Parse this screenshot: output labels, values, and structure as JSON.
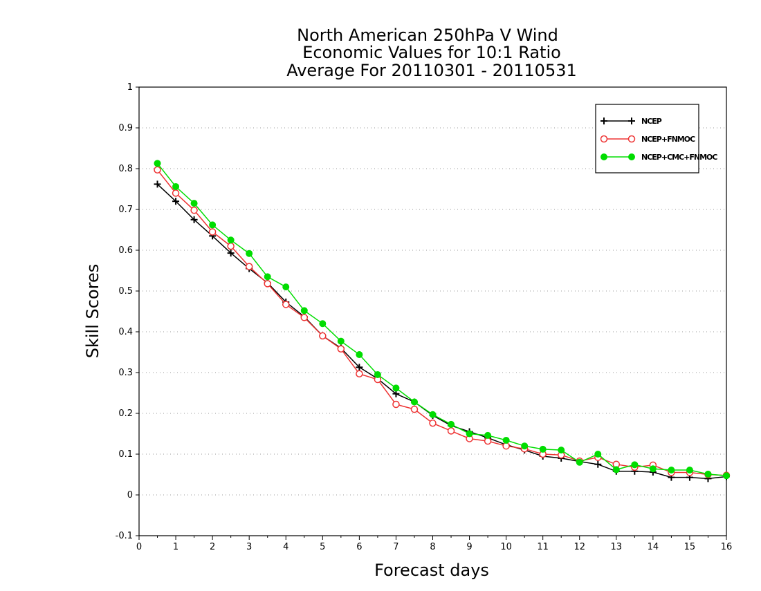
{
  "chart_data": {
    "type": "line",
    "title": [
      "North American 250hPa V Wind",
      "Economic Values for 10:1 Ratio",
      "Average For 20110301 - 20110531"
    ],
    "xlabel": "Forecast days",
    "ylabel": "Skill Scores",
    "xlim": [
      0,
      16
    ],
    "ylim": [
      -0.1,
      1
    ],
    "xticks": [
      0,
      1,
      2,
      3,
      4,
      5,
      6,
      7,
      8,
      9,
      10,
      11,
      12,
      13,
      14,
      15,
      16
    ],
    "xtick_labels": [
      "0",
      "1",
      "2",
      "3",
      "4",
      "5",
      "6",
      "7",
      "8",
      "9",
      "10",
      "11",
      "12",
      "13",
      "14",
      "15",
      "16"
    ],
    "yticks": [
      -0.1,
      0,
      0.1,
      0.2,
      0.3,
      0.4,
      0.5,
      0.6,
      0.7,
      0.8,
      0.9,
      1
    ],
    "ytick_labels": [
      "-0.1",
      "0",
      "0.1",
      "0.2",
      "0.3",
      "0.4",
      "0.5",
      "0.6",
      "0.7",
      "0.8",
      "0.9",
      "1"
    ],
    "grid": "horizontal dotted",
    "legend_position": "top-right",
    "x": [
      0.5,
      1,
      1.5,
      2,
      2.5,
      3,
      3.5,
      4,
      4.5,
      5,
      5.5,
      6,
      6.5,
      7,
      7.5,
      8,
      8.5,
      9,
      9.5,
      10,
      10.5,
      11,
      11.5,
      12,
      12.5,
      13,
      13.5,
      14,
      14.5,
      15,
      15.5,
      16
    ],
    "series": [
      {
        "name": "NCEP",
        "color": "#000000",
        "marker": "plus",
        "values": [
          0.762,
          0.72,
          0.675,
          0.635,
          0.593,
          0.555,
          0.52,
          0.473,
          0.437,
          0.39,
          0.36,
          0.313,
          0.285,
          0.248,
          0.228,
          0.195,
          0.17,
          0.155,
          0.14,
          0.123,
          0.11,
          0.095,
          0.09,
          0.082,
          0.075,
          0.058,
          0.058,
          0.056,
          0.043,
          0.043,
          0.04,
          0.045
        ]
      },
      {
        "name": "NCEP+FNMOC",
        "color": "#ee3333",
        "marker": "open-circle",
        "values": [
          0.797,
          0.74,
          0.698,
          0.645,
          0.61,
          0.56,
          0.518,
          0.467,
          0.435,
          0.39,
          0.358,
          0.297,
          0.283,
          0.222,
          0.21,
          0.176,
          0.157,
          0.138,
          0.132,
          0.12,
          0.113,
          0.1,
          0.098,
          0.083,
          0.092,
          0.075,
          0.068,
          0.073,
          0.055,
          0.055,
          0.05,
          0.048
        ]
      },
      {
        "name": "NCEP+CMC+FNMOC",
        "color": "#00dd00",
        "marker": "filled-circle",
        "values": [
          0.813,
          0.756,
          0.715,
          0.662,
          0.625,
          0.592,
          0.535,
          0.51,
          0.452,
          0.42,
          0.377,
          0.344,
          0.295,
          0.262,
          0.228,
          0.197,
          0.173,
          0.15,
          0.146,
          0.134,
          0.12,
          0.112,
          0.11,
          0.08,
          0.1,
          0.062,
          0.074,
          0.064,
          0.061,
          0.061,
          0.051,
          0.047
        ]
      }
    ]
  }
}
